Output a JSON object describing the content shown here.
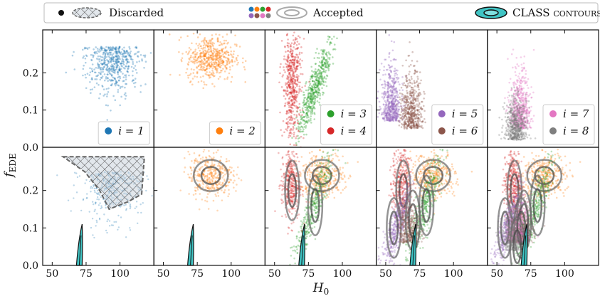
{
  "chart_data": {
    "type": "scatter",
    "xlabel": "H0",
    "ylabel": "f_EDE",
    "xlim": [
      43,
      125
    ],
    "ylim_top": [
      0,
      0.3
    ],
    "ylim_bottom": [
      0,
      0.3
    ],
    "bottom_inverted": true,
    "xticks": [
      50,
      75,
      100
    ],
    "yticks_top": [
      "0.2",
      "0.1",
      "0.0"
    ],
    "yticks_bottom": [
      "0.2",
      "0.1",
      "0.0"
    ],
    "xtick_labels": [
      "50",
      "75",
      "100"
    ],
    "legend": {
      "discarded": "Discarded",
      "accepted": "Accepted",
      "contours": "CLASS contours",
      "dot_colors": [
        "#1f77b4",
        "#ff7f0e",
        "#2ca02c",
        "#d62728",
        "#9467bd",
        "#8c564b",
        "#e377c2",
        "#7f7f7f"
      ]
    },
    "series": [
      {
        "name": "i = 1",
        "color": "#1f77b4",
        "panel": 1,
        "center": [
          97,
          0.25
        ],
        "spread": [
          9,
          0.04
        ]
      },
      {
        "name": "i = 2",
        "color": "#ff7f0e",
        "panel": 2,
        "center": [
          85,
          0.24
        ],
        "spread": [
          9,
          0.03
        ]
      },
      {
        "name": "i = 3",
        "color": "#2ca02c",
        "panel": 3,
        "center": [
          80,
          0.16
        ],
        "spread": [
          5,
          0.07
        ]
      },
      {
        "name": "i = 4",
        "color": "#d62728",
        "panel": 3,
        "center": [
          63,
          0.2
        ],
        "spread": [
          4,
          0.06
        ]
      },
      {
        "name": "i = 5",
        "color": "#9467bd",
        "panel": 4,
        "center": [
          56,
          0.1
        ],
        "spread": [
          5,
          0.06
        ]
      },
      {
        "name": "i = 6",
        "color": "#8c564b",
        "panel": 4,
        "center": [
          70,
          0.12
        ],
        "spread": [
          5,
          0.06
        ]
      },
      {
        "name": "i = 7",
        "color": "#e377c2",
        "panel": 5,
        "center": [
          68,
          0.1
        ],
        "spread": [
          5,
          0.05
        ]
      },
      {
        "name": "i = 8",
        "color": "#7f7f7f",
        "panel": 5,
        "center": [
          65,
          0.05
        ],
        "spread": [
          5,
          0.04
        ]
      }
    ],
    "panel_legends": [
      [
        "i = 1"
      ],
      [
        "i = 2"
      ],
      [
        "i = 3",
        "i = 4"
      ],
      [
        "i = 5",
        "i = 6"
      ],
      [
        "i = 7",
        "i = 8"
      ]
    ],
    "class_contour_color": "#40c4c4"
  }
}
